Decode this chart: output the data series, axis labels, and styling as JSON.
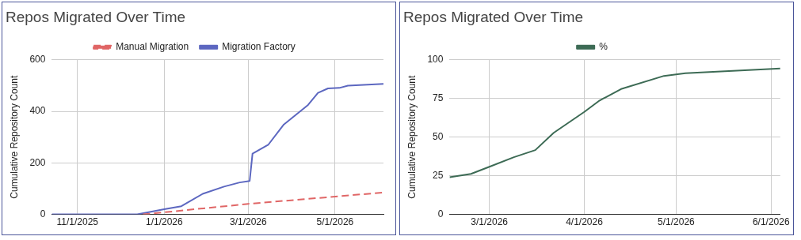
{
  "chart_data": [
    {
      "type": "line",
      "title": "Repos Migrated Over Time",
      "ylabel": "Cumulative Repository Count",
      "legend": "top",
      "grid": true,
      "marker": "none",
      "xlim": [
        "2025-10-14",
        "2026-06-04"
      ],
      "ylim": [
        0,
        600
      ],
      "yticks": [
        0,
        200,
        400,
        600
      ],
      "xticks": [
        {
          "value": "2025-11-01",
          "label": "11/1/2025"
        },
        {
          "value": "2026-01-01",
          "label": "1/1/2026"
        },
        {
          "value": "2026-03-01",
          "label": "3/1/2026"
        },
        {
          "value": "2026-05-01",
          "label": "5/1/2026"
        }
      ],
      "series": [
        {
          "name": "Manual Migration",
          "color": "#e06666",
          "line_style": "dashed",
          "x": [
            "2025-12-17",
            "2026-03-01",
            "2026-06-04"
          ],
          "values": [
            0,
            41,
            85
          ]
        },
        {
          "name": "Migration Factory",
          "color": "#5c67c0",
          "line_style": "solid",
          "x": [
            "2025-10-14",
            "2025-12-13",
            "2026-01-01",
            "2026-01-13",
            "2026-01-28",
            "2026-02-12",
            "2026-02-23",
            "2026-03-02",
            "2026-03-04",
            "2026-03-15",
            "2026-03-26",
            "2026-04-12",
            "2026-04-19",
            "2026-04-26",
            "2026-05-04",
            "2026-05-10",
            "2026-06-04"
          ],
          "values": [
            0,
            0,
            20,
            32,
            80,
            108,
            124,
            130,
            236,
            270,
            349,
            425,
            472,
            489,
            491,
            500,
            507
          ]
        }
      ]
    },
    {
      "type": "line",
      "title": "Repos Migrated Over Time",
      "ylabel": "Cumulative Repository Count",
      "legend": "top",
      "grid": true,
      "marker": "none",
      "xlim": [
        "2026-02-16",
        "2026-06-04"
      ],
      "ylim": [
        0,
        100
      ],
      "yticks": [
        0,
        25,
        50,
        75,
        100
      ],
      "xticks": [
        {
          "value": "2026-03-01",
          "label": "3/1/2026"
        },
        {
          "value": "2026-04-01",
          "label": "4/1/2026"
        },
        {
          "value": "2026-05-01",
          "label": "5/1/2026"
        },
        {
          "value": "2026-06-01",
          "label": "6/1/2026"
        }
      ],
      "series": [
        {
          "name": "%",
          "color": "#3d6b55",
          "line_style": "solid",
          "x": [
            "2026-02-16",
            "2026-02-23",
            "2026-03-01",
            "2026-03-09",
            "2026-03-16",
            "2026-03-22",
            "2026-04-01",
            "2026-04-06",
            "2026-04-13",
            "2026-04-27",
            "2026-05-04",
            "2026-06-04"
          ],
          "values": [
            24.1,
            26.2,
            30.8,
            37,
            41.6,
            52.8,
            66.3,
            73.7,
            81.1,
            89.6,
            91.3,
            94.4
          ]
        }
      ]
    }
  ]
}
